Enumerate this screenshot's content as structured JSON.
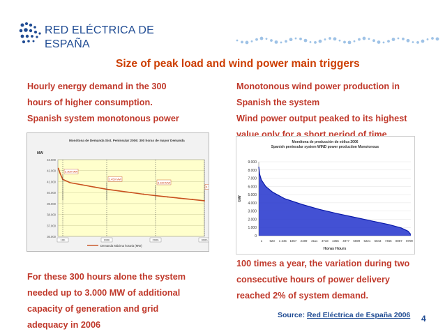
{
  "logo": {
    "line1": "RED ELÉCTRICA DE",
    "line2": "ESPAÑA"
  },
  "colors": {
    "brand_blue": "#1f4b93",
    "title_red": "#cc3d00",
    "text_red": "#c0392b",
    "wind_blue": "#2233cc",
    "demand_red": "#c8501e"
  },
  "slide": {
    "title": "Size of peak load and wind power main triggers",
    "left_top": [
      "Hourly energy demand in the 300",
      "hours of higher consumption.",
      "Spanish system monotonous power",
      "curve"
    ],
    "right_top": [
      "Monotonous wind power production in",
      "Spanish the system",
      "Wind power output peaked to its highest",
      "value only for a short period of time."
    ],
    "left_bottom": [
      "For these 300 hours alone the system",
      "needed up to 3.000 MW of additional",
      "capacity of generation and grid",
      "adequacy in 2006"
    ],
    "right_bottom": [
      "100 times a year, the variation during two",
      "consecutive hours of  power delivery",
      "reached 2% of system demand."
    ],
    "source_prefix": "Source: ",
    "source_link": "Red Eléctrica de España 2006",
    "page_number": "4"
  },
  "chart_data": [
    {
      "type": "line",
      "title": "Monótona de Demanda Sist. Peninsular 2006: 300 horas de mayor Demanda",
      "ylabel": "MW",
      "ylim": [
        36000,
        43000
      ],
      "yticks": [
        "43.000",
        "42.000",
        "41.000",
        "40.000",
        "39.000",
        "38.000",
        "37.000",
        "36.000"
      ],
      "xlim": [
        0,
        300
      ],
      "xticks": [
        "10h",
        "100h",
        "200h",
        "300h"
      ],
      "series": [
        {
          "name": "Demanda Máxima horaria (MW)",
          "x": [
            1,
            5,
            10,
            25,
            50,
            75,
            100,
            125,
            150,
            175,
            200,
            225,
            250,
            275,
            300
          ],
          "y": [
            42200,
            41700,
            41200,
            40900,
            40700,
            40500,
            40300,
            40150,
            40000,
            39850,
            39720,
            39600,
            39480,
            39370,
            39250
          ]
        }
      ],
      "annotations": [
        {
          "label": "2.300 MW",
          "x": 10,
          "y": 41900
        },
        {
          "label": "2.450 MW",
          "x": 100,
          "y": 41200
        },
        {
          "label": "3.160 MW",
          "x": 200,
          "y": 40900
        },
        {
          "label": "3.700 MW",
          "x": 300,
          "y": 40500
        }
      ]
    },
    {
      "type": "area",
      "title": "Monótona de producción de eólica 2006",
      "subtitle": "Spanish peninsular system WIND power production Monotonous",
      "xlabel": "Horas Hours",
      "ylabel": "GW",
      "ylim": [
        0,
        9000
      ],
      "yticks": [
        "0",
        "1.000",
        "2.000",
        "3.000",
        "4.000",
        "5.000",
        "6.000",
        "7.000",
        "8.000",
        "9.000"
      ],
      "xlim": [
        1,
        8760
      ],
      "xticks": [
        "1",
        "623",
        "1 245",
        "1867",
        "2489",
        "3111",
        "3733",
        "4355",
        "4977",
        "5599",
        "6221",
        "6843",
        "7465",
        "8087",
        "8709"
      ],
      "series": [
        {
          "name": "Wind",
          "x": [
            1,
            50,
            150,
            400,
            800,
            1500,
            2500,
            3500,
            4500,
            5500,
            6500,
            7500,
            8200,
            8600,
            8760
          ],
          "y": [
            8400,
            7500,
            6800,
            6000,
            5300,
            4500,
            3800,
            3200,
            2700,
            2250,
            1800,
            1350,
            950,
            550,
            150
          ]
        }
      ]
    }
  ]
}
